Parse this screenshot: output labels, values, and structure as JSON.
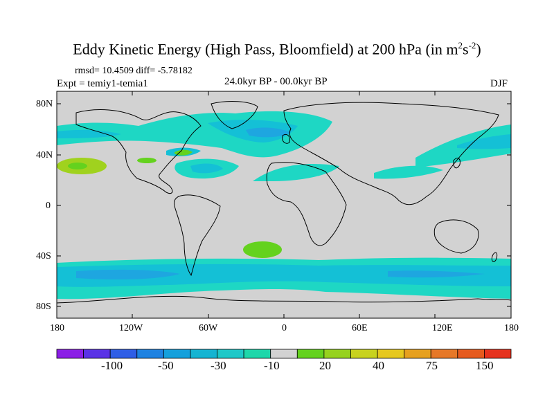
{
  "title": {
    "main": "Eddy Kinetic Energy (High Pass, Bloomfield) at 200 hPa (in m",
    "sup1": "2",
    "unit_s": "s",
    "sup2": "-2",
    "close": ")"
  },
  "stats": {
    "rmsd_line": "rmsd= 10.4509  diff= -5.78182"
  },
  "experiment": "Expt = temiy1-temia1",
  "period": "24.0kyr BP - 00.0kyr BP",
  "season": "DJF",
  "lat_ticks": [
    "80N",
    "40N",
    "0",
    "40S",
    "80S"
  ],
  "lon_ticks": [
    "180",
    "120W",
    "60W",
    "0",
    "60E",
    "120E",
    "180"
  ],
  "colorbar": {
    "labels": [
      "-100",
      "-50",
      "-30",
      "-10",
      "20",
      "40",
      "75",
      "150"
    ],
    "colors": [
      "#8b1ee6",
      "#5a32e6",
      "#2f5ee6",
      "#1e82e1",
      "#14a0dc",
      "#14b4d2",
      "#1ec8c8",
      "#1ed7aa",
      "#d2d2d2",
      "#64d21e",
      "#96d21e",
      "#c8d21e",
      "#e6c81e",
      "#e6a01e",
      "#e67828",
      "#e65a1e",
      "#e6321e"
    ]
  },
  "map_colors": {
    "land_bg": "#d2d2d2",
    "cyan_light": "#1ed7c4",
    "cyan": "#14c0d6",
    "blue": "#1ea6e0",
    "green": "#64d21e",
    "yellow_green": "#a0d21e"
  }
}
